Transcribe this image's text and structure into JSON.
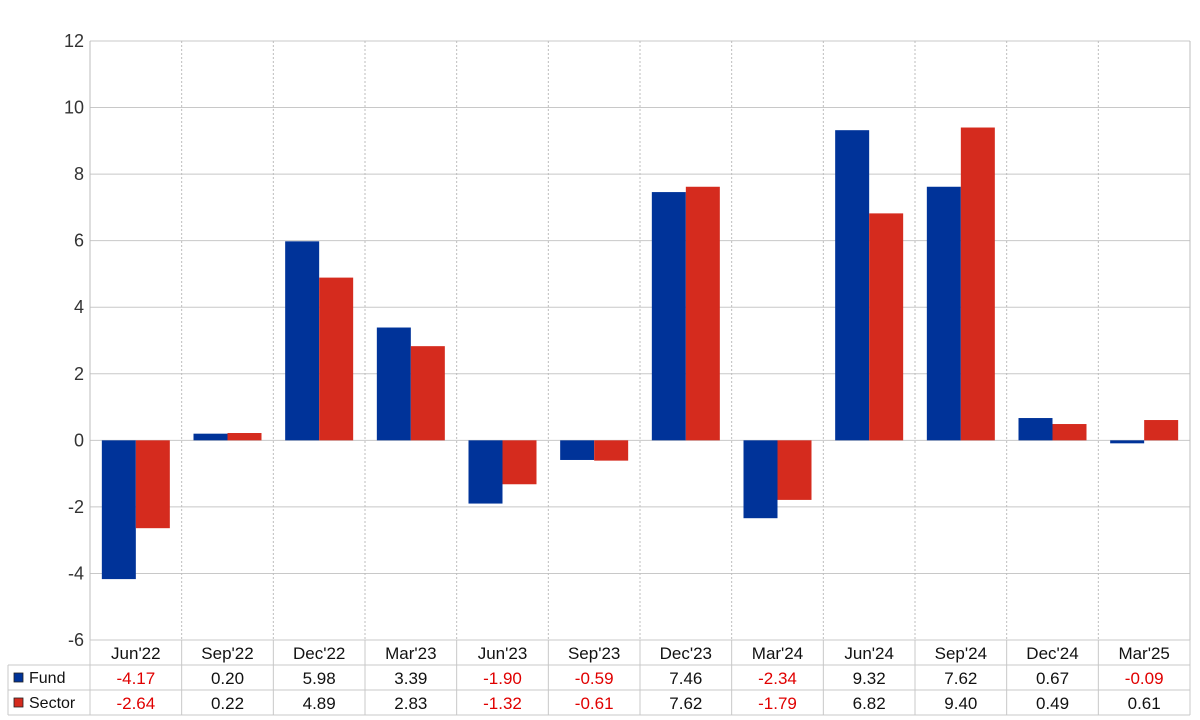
{
  "chart_data": {
    "type": "bar",
    "categories": [
      "Jun'22",
      "Sep'22",
      "Dec'22",
      "Mar'23",
      "Jun'23",
      "Sep'23",
      "Dec'23",
      "Mar'24",
      "Jun'24",
      "Sep'24",
      "Dec'24",
      "Mar'25"
    ],
    "series": [
      {
        "name": "Fund",
        "color": "#003399",
        "values": [
          -4.17,
          0.2,
          5.98,
          3.39,
          -1.9,
          -0.59,
          7.46,
          -2.34,
          9.32,
          7.62,
          0.67,
          -0.09
        ],
        "labels": [
          "-4.17",
          "0.20",
          "5.98",
          "3.39",
          "-1.90",
          "-0.59",
          "7.46",
          "-2.34",
          "9.32",
          "7.62",
          "0.67",
          "-0.09"
        ]
      },
      {
        "name": "Sector",
        "color": "#d52b1e",
        "values": [
          -2.64,
          0.22,
          4.89,
          2.83,
          -1.32,
          -0.61,
          7.62,
          -1.79,
          6.82,
          9.4,
          0.49,
          0.61
        ],
        "labels": [
          "-2.64",
          "0.22",
          "4.89",
          "2.83",
          "-1.32",
          "-0.61",
          "7.62",
          "-1.79",
          "6.82",
          "9.40",
          "0.49",
          "0.61"
        ]
      }
    ],
    "yticks": [
      "12",
      "10",
      "8",
      "6",
      "4",
      "2",
      "0",
      "-2",
      "-4",
      "-6"
    ],
    "ylim": [
      -6,
      12
    ],
    "grid": true,
    "negative_value_color": "#e00000",
    "positive_value_color": "#111111",
    "legend": "data table below chart"
  }
}
